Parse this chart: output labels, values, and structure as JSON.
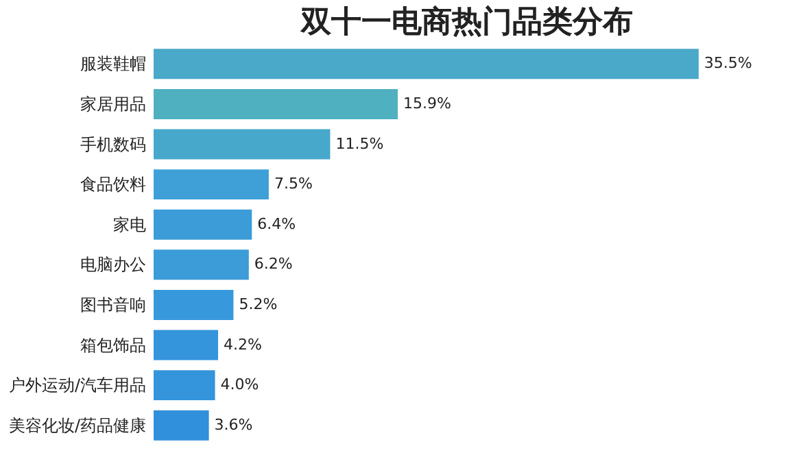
{
  "chart_data": {
    "type": "bar",
    "orientation": "horizontal",
    "title": "双十一电商热门品类分布",
    "categories": [
      "服装鞋帽",
      "家居用品",
      "手机数码",
      "食品饮料",
      "家电",
      "电脑办公",
      "图书音响",
      "箱包饰品",
      "户外运动/汽车用品",
      "美容化妆/药品健康"
    ],
    "values": [
      35.5,
      15.9,
      11.5,
      7.5,
      6.4,
      6.2,
      5.2,
      4.2,
      4.0,
      3.6
    ],
    "value_labels": [
      "35.5%",
      "15.9%",
      "11.5%",
      "7.5%",
      "6.4%",
      "6.2%",
      "5.2%",
      "4.2%",
      "4.0%",
      "3.6%"
    ],
    "colors": [
      "#4aa8c8",
      "#4fb0c0",
      "#48a8cc",
      "#3fa0d8",
      "#3c9cd8",
      "#3c9cd8",
      "#3898dc",
      "#3494dc",
      "#3494dc",
      "#3090dc"
    ],
    "data_labels": true
  }
}
